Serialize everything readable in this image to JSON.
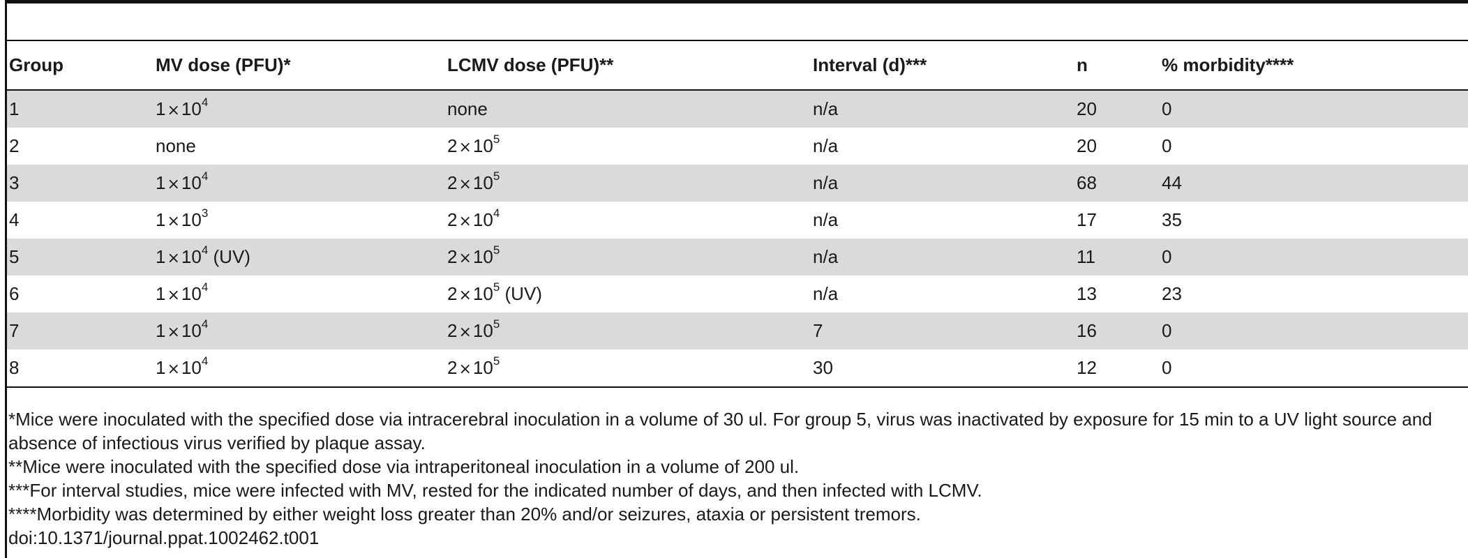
{
  "table": {
    "headers": [
      "Group",
      "MV dose (PFU)*",
      "LCMV dose (PFU)**",
      "Interval (d)***",
      "n",
      "% morbidity****"
    ],
    "rows": [
      {
        "group": "1",
        "mv": {
          "coef": "1",
          "times": "×",
          "base": "10",
          "exp": "4",
          "suffix": ""
        },
        "lcmv": {
          "text": "none"
        },
        "interval": "n/a",
        "n": "20",
        "morbidity": "0"
      },
      {
        "group": "2",
        "mv": {
          "text": "none"
        },
        "lcmv": {
          "coef": "2",
          "times": "×",
          "base": "10",
          "exp": "5",
          "suffix": ""
        },
        "interval": "n/a",
        "n": "20",
        "morbidity": "0"
      },
      {
        "group": "3",
        "mv": {
          "coef": "1",
          "times": "×",
          "base": "10",
          "exp": "4",
          "suffix": ""
        },
        "lcmv": {
          "coef": "2",
          "times": "×",
          "base": "10",
          "exp": "5",
          "suffix": ""
        },
        "interval": "n/a",
        "n": "68",
        "morbidity": "44"
      },
      {
        "group": "4",
        "mv": {
          "coef": "1",
          "times": "×",
          "base": "10",
          "exp": "3",
          "suffix": ""
        },
        "lcmv": {
          "coef": "2",
          "times": "×",
          "base": "10",
          "exp": "4",
          "suffix": ""
        },
        "interval": "n/a",
        "n": "17",
        "morbidity": "35"
      },
      {
        "group": "5",
        "mv": {
          "coef": "1",
          "times": "×",
          "base": "10",
          "exp": "4",
          "suffix": " (UV)"
        },
        "lcmv": {
          "coef": "2",
          "times": "×",
          "base": "10",
          "exp": "5",
          "suffix": ""
        },
        "interval": "n/a",
        "n": "11",
        "morbidity": "0"
      },
      {
        "group": "6",
        "mv": {
          "coef": "1",
          "times": "×",
          "base": "10",
          "exp": "4",
          "suffix": ""
        },
        "lcmv": {
          "coef": "2",
          "times": "×",
          "base": "10",
          "exp": "5",
          "suffix": " (UV)"
        },
        "interval": "n/a",
        "n": "13",
        "morbidity": "23"
      },
      {
        "group": "7",
        "mv": {
          "coef": "1",
          "times": "×",
          "base": "10",
          "exp": "4",
          "suffix": ""
        },
        "lcmv": {
          "coef": "2",
          "times": "×",
          "base": "10",
          "exp": "5",
          "suffix": ""
        },
        "interval": "7",
        "n": "16",
        "morbidity": "0"
      },
      {
        "group": "8",
        "mv": {
          "coef": "1",
          "times": "×",
          "base": "10",
          "exp": "4",
          "suffix": ""
        },
        "lcmv": {
          "coef": "2",
          "times": "×",
          "base": "10",
          "exp": "5",
          "suffix": ""
        },
        "interval": "30",
        "n": "12",
        "morbidity": "0"
      }
    ],
    "shade_color": "#dadada"
  },
  "footnotes": [
    "*Mice were inoculated with the specified dose via intracerebral inoculation in a volume of 30 ul. For group 5, virus was inactivated by exposure for 15 min to a UV light source and absence of infectious virus verified by plaque assay.",
    "**Mice were inoculated with the specified dose via intraperitoneal inoculation in a volume of 200 ul.",
    "***For interval studies, mice were infected with MV, rested for the indicated number of days, and then infected with LCMV.",
    "****Morbidity was determined by either weight loss greater than 20% and/or seizures, ataxia or persistent tremors."
  ],
  "doi": "doi:10.1371/journal.ppat.1002462.t001"
}
